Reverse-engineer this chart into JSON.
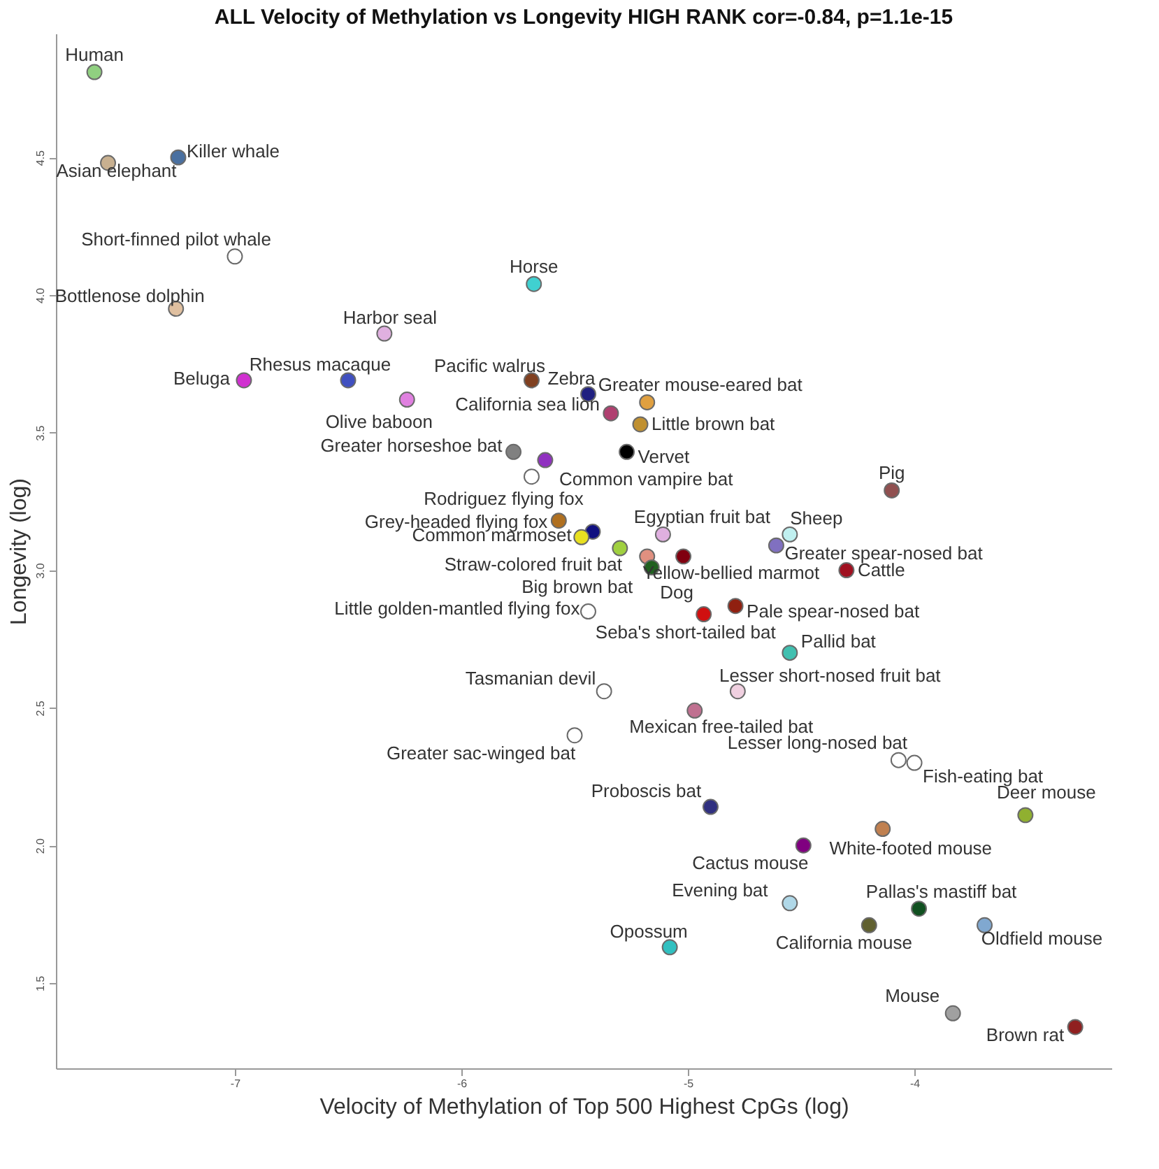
{
  "chart_data": {
    "type": "scatter",
    "title": "ALL Velocity of Methylation vs Longevity HIGH RANK cor=-0.84, p=1.1e-15",
    "xlabel": "Velocity of Methylation of Top 500 Highest CpGs (log)",
    "ylabel": "Longevity (log)",
    "x": [
      -7.62,
      -7.56,
      -7.25,
      -7.0,
      -7.26,
      -5.68,
      -6.34,
      -6.96,
      -6.5,
      -6.24,
      -5.69,
      -5.44,
      -5.18,
      -5.34,
      -5.21,
      -5.77,
      -5.63,
      -5.27,
      -5.69,
      -5.57,
      -5.42,
      -5.47,
      -5.11,
      -5.3,
      -5.18,
      -5.16,
      -5.02,
      -4.55,
      -4.61,
      -4.3,
      -4.79,
      -4.93,
      -5.44,
      -4.1,
      -4.55,
      -5.37,
      -4.78,
      -4.97,
      -5.5,
      -4.07,
      -4.0,
      -4.9,
      -4.14,
      -3.51,
      -4.49,
      -4.55,
      -3.98,
      -4.2,
      -3.69,
      -5.08,
      -3.83,
      -3.29
    ],
    "values": [
      4.81,
      4.48,
      4.5,
      4.14,
      3.95,
      4.04,
      3.86,
      3.69,
      3.69,
      3.62,
      3.69,
      3.64,
      3.61,
      3.57,
      3.53,
      3.43,
      3.4,
      3.43,
      3.34,
      3.18,
      3.14,
      3.12,
      3.13,
      3.08,
      3.05,
      3.01,
      3.05,
      3.13,
      3.09,
      3.0,
      2.87,
      2.84,
      2.85,
      3.29,
      2.7,
      2.56,
      2.56,
      2.49,
      2.4,
      2.31,
      2.3,
      2.14,
      2.06,
      2.11,
      2.0,
      1.79,
      1.77,
      1.71,
      1.71,
      1.63,
      1.39,
      1.34
    ],
    "colors": [
      "#90d080",
      "#c8b090",
      "#4a70a0",
      "#ffffff",
      "#e0c0a0",
      "#40d0d0",
      "#e0b0e0",
      "#d030d0",
      "#4050c0",
      "#e080e0",
      "#804020",
      "#202080",
      "#e0a040",
      "#b04070",
      "#c09030",
      "#808080",
      "#9030c0",
      "#000000",
      "#ffffff",
      "#b07020",
      "#101080",
      "#e8e020",
      "#e0b0e0",
      "#a0d040",
      "#e09080",
      "#206020",
      "#800010",
      "#c0f0f0",
      "#8070c0",
      "#a01020",
      "#902010",
      "#d01010",
      "#ffffff",
      "#905050",
      "#40c0b0",
      "#ffffff",
      "#f0d0e0",
      "#c07090",
      "#ffffff",
      "#ffffff",
      "#ffffff",
      "#303080",
      "#c08050",
      "#90b030",
      "#800080",
      "#b0d8e8",
      "#105020",
      "#606030",
      "#80a8d0",
      "#30c0c0",
      "#a0a0a0",
      "#902020"
    ],
    "annotations": [
      {
        "text": "Human",
        "x": -7.62,
        "y": 4.81
      },
      {
        "text": "Asian elephant",
        "x": -7.56,
        "y": 4.48
      },
      {
        "text": "Killer whale",
        "x": -7.25,
        "y": 4.5
      },
      {
        "text": "Short-finned pilot whale",
        "x": -7.0,
        "y": 4.14
      },
      {
        "text": "Bottlenose dolphin",
        "x": -7.26,
        "y": 3.95
      },
      {
        "text": "Horse",
        "x": -5.68,
        "y": 4.04
      },
      {
        "text": "Harbor seal",
        "x": -6.34,
        "y": 3.86
      },
      {
        "text": "Beluga",
        "x": -6.96,
        "y": 3.69
      },
      {
        "text": "Rhesus macaque",
        "x": -6.5,
        "y": 3.69
      },
      {
        "text": "Olive baboon",
        "x": -6.24,
        "y": 3.62
      },
      {
        "text": "Pacific walrus",
        "x": -5.69,
        "y": 3.69
      },
      {
        "text": "Zebra",
        "x": -5.44,
        "y": 3.64
      },
      {
        "text": "Greater mouse-eared bat",
        "x": -5.18,
        "y": 3.61
      },
      {
        "text": "California sea lion",
        "x": -5.34,
        "y": 3.57
      },
      {
        "text": "Little brown bat",
        "x": -5.21,
        "y": 3.53
      },
      {
        "text": "Greater horseshoe bat",
        "x": -5.77,
        "y": 3.43
      },
      {
        "text": "Common vampire bat",
        "x": -5.63,
        "y": 3.4
      },
      {
        "text": "Vervet",
        "x": -5.27,
        "y": 3.43
      },
      {
        "text": "Rodriguez flying fox",
        "x": -5.69,
        "y": 3.34
      },
      {
        "text": "Grey-headed flying fox",
        "x": -5.57,
        "y": 3.18
      },
      {
        "text": "Common marmoset",
        "x": -5.47,
        "y": 3.12
      },
      {
        "text": "Egyptian fruit bat",
        "x": -5.11,
        "y": 3.13
      },
      {
        "text": "Straw-colored fruit bat",
        "x": -5.3,
        "y": 3.08
      },
      {
        "text": "Big brown bat",
        "x": -5.18,
        "y": 3.05
      },
      {
        "text": "Dog",
        "x": -5.16,
        "y": 3.01
      },
      {
        "text": "Yellow-bellied marmot",
        "x": -5.02,
        "y": 3.05
      },
      {
        "text": "Sheep",
        "x": -4.55,
        "y": 3.13
      },
      {
        "text": "Greater spear-nosed bat",
        "x": -4.61,
        "y": 3.09
      },
      {
        "text": "Cattle",
        "x": -4.3,
        "y": 3.0
      },
      {
        "text": "Pale spear-nosed bat",
        "x": -4.79,
        "y": 2.87
      },
      {
        "text": "Seba's short-tailed bat",
        "x": -4.93,
        "y": 2.84
      },
      {
        "text": "Little golden-mantled flying fox",
        "x": -5.44,
        "y": 2.85
      },
      {
        "text": "Pig",
        "x": -4.1,
        "y": 3.29
      },
      {
        "text": "Pallid bat",
        "x": -4.55,
        "y": 2.7
      },
      {
        "text": "Tasmanian devil",
        "x": -5.37,
        "y": 2.56
      },
      {
        "text": "Lesser short-nosed fruit bat",
        "x": -4.78,
        "y": 2.56
      },
      {
        "text": "Mexican free-tailed bat",
        "x": -4.97,
        "y": 2.49
      },
      {
        "text": "Greater sac-winged bat",
        "x": -5.5,
        "y": 2.4
      },
      {
        "text": "Lesser long-nosed bat",
        "x": -4.07,
        "y": 2.31
      },
      {
        "text": "Fish-eating bat",
        "x": -4.0,
        "y": 2.3
      },
      {
        "text": "Proboscis bat",
        "x": -4.9,
        "y": 2.14
      },
      {
        "text": "White-footed mouse",
        "x": -4.14,
        "y": 2.06
      },
      {
        "text": "Deer mouse",
        "x": -3.51,
        "y": 2.11
      },
      {
        "text": "Cactus mouse",
        "x": -4.49,
        "y": 2.0
      },
      {
        "text": "Evening bat",
        "x": -4.55,
        "y": 1.79
      },
      {
        "text": "Pallas's mastiff bat",
        "x": -3.98,
        "y": 1.77
      },
      {
        "text": "California mouse",
        "x": -4.2,
        "y": 1.71
      },
      {
        "text": "Oldfield mouse",
        "x": -3.69,
        "y": 1.71
      },
      {
        "text": "Opossum",
        "x": -5.08,
        "y": 1.63
      },
      {
        "text": "Mouse",
        "x": -3.83,
        "y": 1.39
      },
      {
        "text": "Brown rat",
        "x": -3.29,
        "y": 1.34
      }
    ],
    "xlim": [
      -7.79,
      -3.13
    ],
    "ylim": [
      1.19,
      4.95
    ],
    "xticks": [
      {
        "value": -7,
        "label": "-7"
      },
      {
        "value": -6,
        "label": "-6"
      },
      {
        "value": -5,
        "label": "-5"
      },
      {
        "value": -4,
        "label": "-4"
      }
    ],
    "yticks": [
      {
        "value": 1.5,
        "label": "1.5"
      },
      {
        "value": 2,
        "label": "2.0"
      },
      {
        "value": 2.5,
        "label": "2.5"
      },
      {
        "value": 3,
        "label": "3.0"
      },
      {
        "value": 3.5,
        "label": "3.5"
      },
      {
        "value": 4,
        "label": "4.0"
      },
      {
        "value": 4.5,
        "label": "4.5"
      }
    ],
    "grid": false,
    "marker": "circle"
  }
}
